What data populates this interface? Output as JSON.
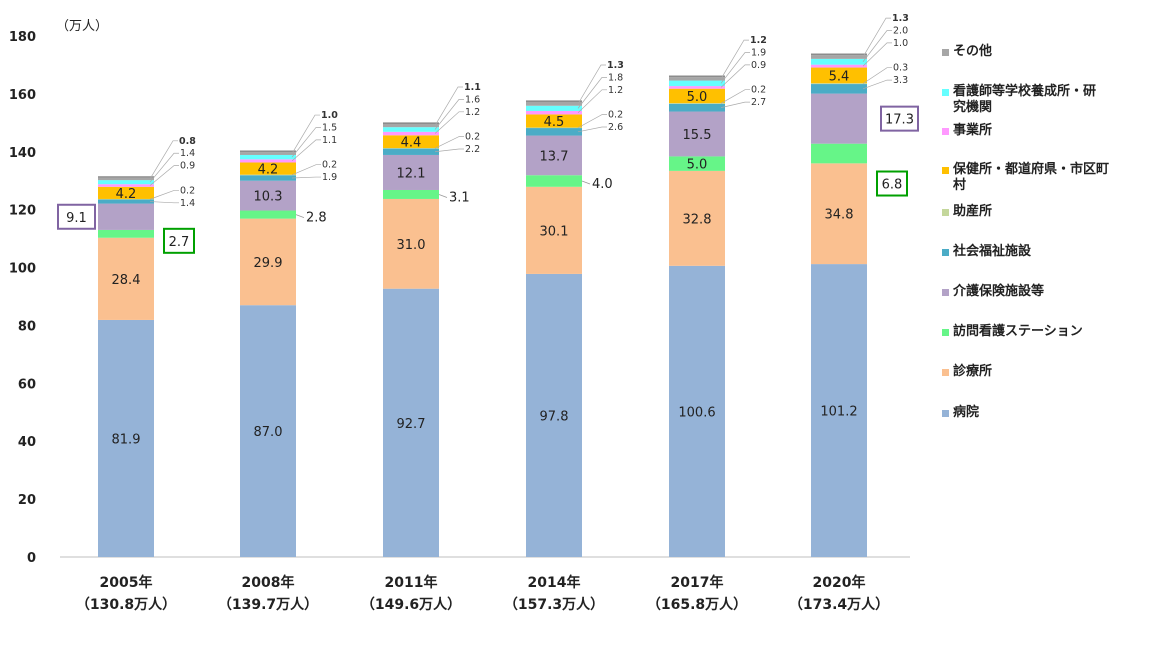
{
  "chart_data": {
    "type": "bar",
    "stacked": true,
    "unit_label": "（万人）",
    "ylim": [
      0,
      180
    ],
    "yticks": [
      0,
      20,
      40,
      60,
      80,
      100,
      120,
      140,
      160,
      180
    ],
    "categories": [
      "2005年",
      "2008年",
      "2011年",
      "2014年",
      "2017年",
      "2020年"
    ],
    "category_totals": [
      "（130.8万人）",
      "（139.7万人）",
      "（149.6万人）",
      "（157.3万人）",
      "（165.8万人）",
      "（173.4万人）"
    ],
    "series": [
      {
        "name": "病院",
        "color": "#95b3d7",
        "values": [
          81.9,
          87.0,
          92.7,
          97.8,
          100.6,
          101.2
        ],
        "labels": [
          "81.9",
          "87.0",
          "92.7",
          "97.8",
          "100.6",
          "101.2"
        ]
      },
      {
        "name": "診療所",
        "color": "#fac090",
        "values": [
          28.4,
          29.9,
          31.0,
          30.1,
          32.8,
          34.8
        ],
        "labels": [
          "28.4",
          "29.9",
          "31.0",
          "30.1",
          "32.8",
          "34.8"
        ]
      },
      {
        "name": "訪問看護ステーション",
        "color": "#66f588",
        "values": [
          2.7,
          2.8,
          3.1,
          4.0,
          5.0,
          6.8
        ],
        "labels": [
          "2.7",
          "2.8",
          "3.1",
          "4.0",
          "5.0",
          "6.8"
        ]
      },
      {
        "name": "介護保険施設等",
        "color": "#b3a2c7",
        "values": [
          9.1,
          10.3,
          12.1,
          13.7,
          15.5,
          17.3
        ],
        "labels": [
          "9.1",
          "10.3",
          "12.1",
          "13.7",
          "15.5",
          "17.3"
        ]
      },
      {
        "name": "社会福祉施設",
        "color": "#4bacc6",
        "values": [
          1.4,
          1.9,
          2.2,
          2.6,
          2.7,
          3.3
        ],
        "labels": [
          "1.4",
          "1.9",
          "2.2",
          "2.6",
          "2.7",
          "3.3"
        ]
      },
      {
        "name": "助産所",
        "color": "#c4d79b",
        "values": [
          0.2,
          0.2,
          0.2,
          0.2,
          0.2,
          0.3
        ],
        "labels": [
          "0.2",
          "0.2",
          "0.2",
          "0.2",
          "0.2",
          "0.3"
        ]
      },
      {
        "name": "保健所・都道府県・市区町村",
        "color": "#ffc000",
        "values": [
          4.2,
          4.2,
          4.4,
          4.5,
          5.0,
          5.4
        ],
        "labels": [
          "4.2",
          "4.2",
          "4.4",
          "4.5",
          "5.0",
          "5.4"
        ]
      },
      {
        "name": "事業所",
        "color": "#ff99ff",
        "values": [
          0.9,
          1.1,
          1.2,
          1.2,
          0.9,
          1.0
        ],
        "labels": [
          "0.9",
          "1.1",
          "1.2",
          "1.2",
          "0.9",
          "1.0"
        ]
      },
      {
        "name": "看護師等学校養成所・研究機関",
        "color": "#66ffff",
        "values": [
          1.4,
          1.5,
          1.6,
          1.8,
          1.9,
          2.0
        ],
        "labels": [
          "1.4",
          "1.5",
          "1.6",
          "1.8",
          "1.9",
          "2.0"
        ]
      },
      {
        "name": "その他",
        "color": "#a6a6a6",
        "values": [
          0.8,
          1.0,
          1.1,
          1.3,
          1.2,
          1.3
        ],
        "labels": [
          "0.8",
          "1.0",
          "1.1",
          "1.3",
          "1.2",
          "1.3"
        ]
      }
    ],
    "legend": {
      "position": "right",
      "items": [
        {
          "name": "その他",
          "color": "#a6a6a6"
        },
        {
          "name": "看護師等学校養成所・研究機関",
          "display": "看護師等学校養成所・研\n究機関",
          "color": "#66ffff"
        },
        {
          "name": "事業所",
          "color": "#ff99ff"
        },
        {
          "name": "保健所・都道府県・市区町村",
          "display": "保健所・都道府県・市区町\n村",
          "color": "#ffc000"
        },
        {
          "name": "助産所",
          "color": "#c4d79b"
        },
        {
          "name": "社会福祉施設",
          "color": "#4bacc6"
        },
        {
          "name": "介護保険施設等",
          "color": "#b3a2c7"
        },
        {
          "name": "訪問看護ステーション",
          "color": "#66f588"
        },
        {
          "name": "診療所",
          "color": "#fac090"
        },
        {
          "name": "病院",
          "color": "#95b3d7"
        }
      ]
    },
    "highlight_colors": {
      "purple": "#8064a2",
      "green": "#00a000"
    },
    "grid": false
  }
}
